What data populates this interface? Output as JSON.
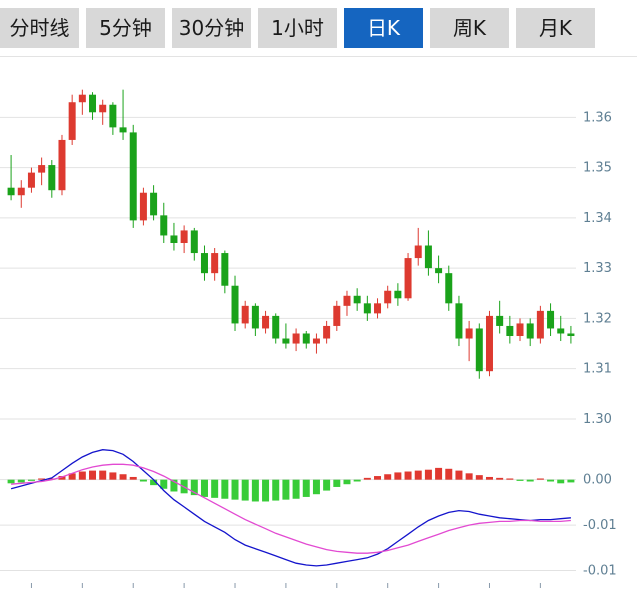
{
  "toolbar": {
    "tabs": [
      {
        "label": "分时线",
        "active": false
      },
      {
        "label": "5分钟",
        "active": false
      },
      {
        "label": "30分钟",
        "active": false
      },
      {
        "label": "1小时",
        "active": false
      },
      {
        "label": "日K",
        "active": true
      },
      {
        "label": "周K",
        "active": false
      },
      {
        "label": "月K",
        "active": false
      }
    ]
  },
  "colors": {
    "up": "#dd3a30",
    "down": "#1aa21a",
    "hist_up": "#e03830",
    "hist_down": "#38cc38",
    "dif_line": "#1414cc",
    "dea_line": "#e24ad2",
    "grid": "#e2e2e2",
    "axis_label": "#5f7f93",
    "tick_mark": "#8899aa",
    "active_tab_bg": "#1565c0",
    "active_tab_text": "#ffffff",
    "tab_bg": "#d8d8d8",
    "tab_text": "#1a1a1a"
  },
  "chart_data": {
    "type": "candlestick",
    "title": "",
    "panels": [
      "price",
      "macd"
    ],
    "legend": "none",
    "grid": "horizontal",
    "price_axis": {
      "side": "right",
      "min": 1.2982,
      "max": 1.3716,
      "ticks": [
        1.36,
        1.35,
        1.34,
        1.33,
        1.32,
        1.31,
        1.3
      ],
      "tick_labels": [
        "1.36",
        "1.35",
        "1.34",
        "1.33",
        "1.32",
        "1.31",
        "1.30"
      ]
    },
    "macd_axis": {
      "side": "right",
      "min": -0.0116,
      "max": 0.0036,
      "ticks": [
        0,
        -0.005,
        -0.01
      ],
      "tick_labels": [
        "0.00",
        "-0.01",
        "-0.01"
      ]
    },
    "candles": {
      "ohlc": [
        [
          1.346,
          1.3525,
          1.3435,
          1.3445
        ],
        [
          1.3445,
          1.3475,
          1.342,
          1.346
        ],
        [
          1.346,
          1.35,
          1.345,
          1.349
        ],
        [
          1.349,
          1.352,
          1.3465,
          1.3505
        ],
        [
          1.3505,
          1.3515,
          1.344,
          1.3455
        ],
        [
          1.3455,
          1.3565,
          1.3445,
          1.3555
        ],
        [
          1.3555,
          1.3645,
          1.3545,
          1.363
        ],
        [
          1.363,
          1.3655,
          1.3605,
          1.3645
        ],
        [
          1.3645,
          1.365,
          1.3595,
          1.361
        ],
        [
          1.361,
          1.3635,
          1.3585,
          1.3625
        ],
        [
          1.3625,
          1.363,
          1.3565,
          1.358
        ],
        [
          1.358,
          1.3655,
          1.3555,
          1.357
        ],
        [
          1.357,
          1.3585,
          1.338,
          1.3395
        ],
        [
          1.3395,
          1.346,
          1.3385,
          1.345
        ],
        [
          1.345,
          1.3465,
          1.3395,
          1.3405
        ],
        [
          1.3405,
          1.343,
          1.335,
          1.3365
        ],
        [
          1.3365,
          1.339,
          1.3335,
          1.335
        ],
        [
          1.335,
          1.3385,
          1.333,
          1.3375
        ],
        [
          1.3375,
          1.338,
          1.3315,
          1.333
        ],
        [
          1.333,
          1.3345,
          1.3275,
          1.329
        ],
        [
          1.329,
          1.334,
          1.3275,
          1.333
        ],
        [
          1.333,
          1.3335,
          1.325,
          1.3265
        ],
        [
          1.3265,
          1.3285,
          1.3175,
          1.319
        ],
        [
          1.319,
          1.3235,
          1.318,
          1.3225
        ],
        [
          1.3225,
          1.323,
          1.3165,
          1.318
        ],
        [
          1.318,
          1.3215,
          1.317,
          1.3205
        ],
        [
          1.3205,
          1.321,
          1.315,
          1.316
        ],
        [
          1.316,
          1.319,
          1.314,
          1.315
        ],
        [
          1.315,
          1.318,
          1.3135,
          1.317
        ],
        [
          1.317,
          1.3175,
          1.314,
          1.315
        ],
        [
          1.315,
          1.317,
          1.313,
          1.316
        ],
        [
          1.316,
          1.3195,
          1.315,
          1.3185
        ],
        [
          1.3185,
          1.3235,
          1.3175,
          1.3225
        ],
        [
          1.3225,
          1.3255,
          1.3205,
          1.3245
        ],
        [
          1.3245,
          1.326,
          1.3215,
          1.323
        ],
        [
          1.323,
          1.3245,
          1.3195,
          1.321
        ],
        [
          1.321,
          1.324,
          1.32,
          1.323
        ],
        [
          1.323,
          1.3265,
          1.322,
          1.3255
        ],
        [
          1.3255,
          1.327,
          1.3225,
          1.324
        ],
        [
          1.324,
          1.333,
          1.3235,
          1.332
        ],
        [
          1.332,
          1.338,
          1.3305,
          1.3345
        ],
        [
          1.3345,
          1.3375,
          1.3285,
          1.33
        ],
        [
          1.33,
          1.3325,
          1.327,
          1.329
        ],
        [
          1.329,
          1.3305,
          1.3215,
          1.323
        ],
        [
          1.323,
          1.3245,
          1.3145,
          1.316
        ],
        [
          1.316,
          1.3195,
          1.3115,
          1.318
        ],
        [
          1.318,
          1.319,
          1.308,
          1.3095
        ],
        [
          1.3095,
          1.3215,
          1.3085,
          1.3205
        ],
        [
          1.3205,
          1.3235,
          1.317,
          1.3185
        ],
        [
          1.3185,
          1.3205,
          1.315,
          1.3165
        ],
        [
          1.3165,
          1.32,
          1.3155,
          1.319
        ],
        [
          1.319,
          1.32,
          1.3145,
          1.316
        ],
        [
          1.316,
          1.3225,
          1.315,
          1.3215
        ],
        [
          1.3215,
          1.323,
          1.3165,
          1.318
        ],
        [
          1.318,
          1.3205,
          1.3155,
          1.317
        ],
        [
          1.317,
          1.3185,
          1.315,
          1.3165
        ]
      ]
    },
    "macd": {
      "dif": [
        -0.001,
        -0.0007,
        -0.0004,
        -0.0001,
        0.0002,
        0.001,
        0.0018,
        0.0025,
        0.003,
        0.0033,
        0.0032,
        0.0028,
        0.002,
        0.001,
        0.0,
        -0.0012,
        -0.0022,
        -0.003,
        -0.0038,
        -0.0046,
        -0.0052,
        -0.0058,
        -0.0066,
        -0.0072,
        -0.0076,
        -0.008,
        -0.0084,
        -0.0088,
        -0.0092,
        -0.0094,
        -0.0095,
        -0.0094,
        -0.0092,
        -0.009,
        -0.0088,
        -0.0086,
        -0.0082,
        -0.0076,
        -0.0068,
        -0.006,
        -0.0052,
        -0.0045,
        -0.004,
        -0.0036,
        -0.0034,
        -0.0035,
        -0.0038,
        -0.004,
        -0.0042,
        -0.0043,
        -0.0044,
        -0.0045,
        -0.0044,
        -0.0044,
        -0.0043,
        -0.0042
      ],
      "dea": [
        -0.0005,
        -0.0004,
        -0.0003,
        -0.0002,
        0.0,
        0.0003,
        0.0007,
        0.0011,
        0.0014,
        0.0016,
        0.0017,
        0.0017,
        0.0016,
        0.0013,
        0.0009,
        0.0004,
        -0.0002,
        -0.0008,
        -0.0014,
        -0.002,
        -0.0026,
        -0.0032,
        -0.0038,
        -0.0044,
        -0.0049,
        -0.0054,
        -0.0059,
        -0.0063,
        -0.0067,
        -0.0071,
        -0.0074,
        -0.0077,
        -0.0079,
        -0.008,
        -0.0081,
        -0.0081,
        -0.008,
        -0.0078,
        -0.0075,
        -0.0072,
        -0.0068,
        -0.0064,
        -0.006,
        -0.0056,
        -0.0053,
        -0.005,
        -0.0048,
        -0.0047,
        -0.0046,
        -0.0046,
        -0.0045,
        -0.0045,
        -0.0046,
        -0.0046,
        -0.0046,
        -0.0045
      ],
      "histogram": [
        -0.0004,
        -0.0003,
        -0.0001,
        0.0001,
        0.0001,
        0.0004,
        0.0007,
        0.0009,
        0.001,
        0.001,
        0.0008,
        0.0006,
        0.0003,
        -0.0002,
        -0.0006,
        -0.001,
        -0.0013,
        -0.0015,
        -0.0017,
        -0.0019,
        -0.002,
        -0.0021,
        -0.0022,
        -0.0023,
        -0.0024,
        -0.0024,
        -0.0023,
        -0.0022,
        -0.0021,
        -0.0019,
        -0.0016,
        -0.0012,
        -0.0008,
        -0.0005,
        -0.0002,
        0.0002,
        0.0004,
        0.0006,
        0.0008,
        0.0009,
        0.001,
        0.0011,
        0.0013,
        0.0012,
        0.001,
        0.0007,
        0.0005,
        0.0003,
        0.0002,
        0.0001,
        -0.0001,
        -0.0002,
        0.0001,
        -0.0002,
        -0.0004,
        -0.0003
      ]
    }
  }
}
